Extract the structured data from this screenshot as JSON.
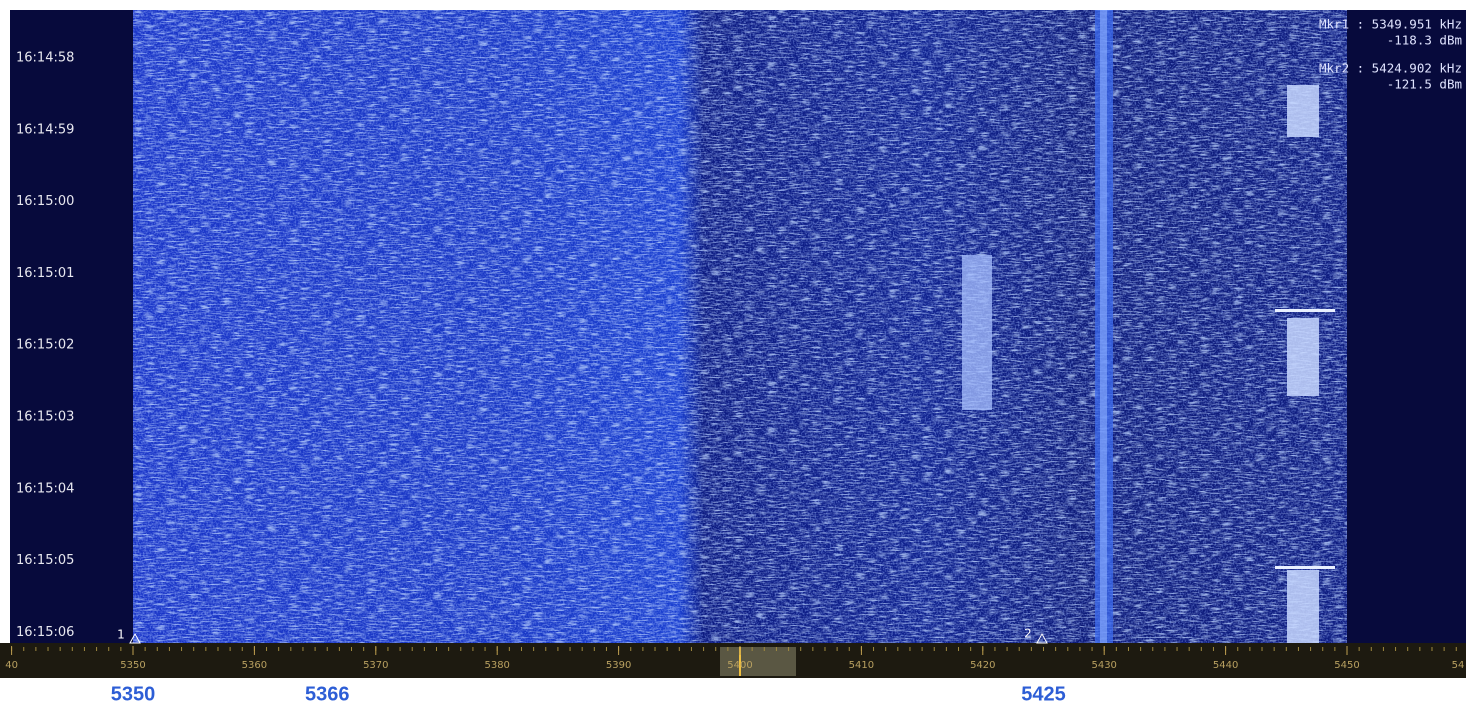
{
  "time_labels": [
    "16:14:58",
    "16:14:59",
    "16:15:00",
    "16:15:01",
    "16:15:02",
    "16:15:03",
    "16:15:04",
    "16:15:05",
    "16:15:06"
  ],
  "markers": [
    {
      "flag": "1",
      "readout": "Mkr1 : 5349.951 kHz",
      "level": "-118.3  dBm"
    },
    {
      "flag": "2",
      "readout": "Mkr2 : 5424.902 kHz",
      "level": "-121.5  dBm"
    }
  ],
  "frequency_axis": {
    "ticks": [
      {
        "value": 5340,
        "label": "40"
      },
      5350,
      5360,
      5370,
      5380,
      5390,
      5400,
      5410,
      5420,
      5430,
      5440,
      5450,
      {
        "value": 5460,
        "label": "54"
      }
    ]
  },
  "annotations": [
    5350,
    5366,
    5425
  ]
}
